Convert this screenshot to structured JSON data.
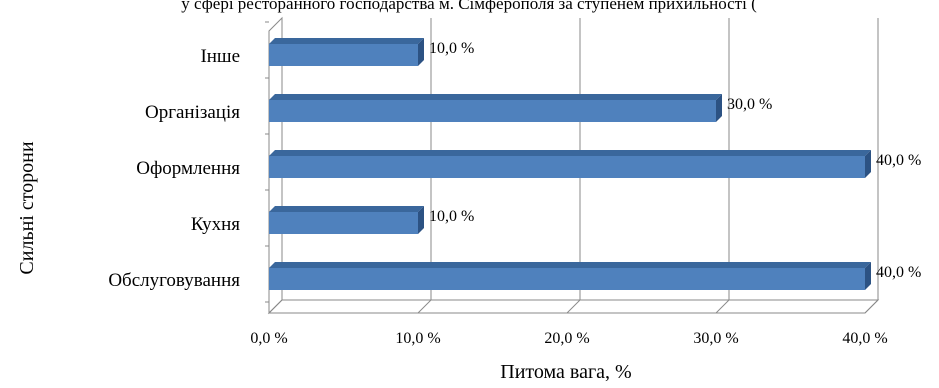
{
  "top_text": "у сфері ресторанного господарства м. Сімферополя за ступенем прихильності (",
  "chart_data": {
    "type": "bar",
    "orientation": "horizontal",
    "style": "3d",
    "categories": [
      "Інше",
      "Організація",
      "Оформлення",
      "Кухня",
      "Обслуговування"
    ],
    "values": [
      10,
      30,
      40,
      10,
      40
    ],
    "data_labels": [
      "10,0 %",
      "30,0 %",
      "40,0 %",
      "10,0 %",
      "40,0 %"
    ],
    "x_ticks": [
      "0,0 %",
      "10,0 %",
      "20,0 %",
      "30,0 %",
      "40,0 %"
    ],
    "xlim": [
      0,
      40
    ],
    "xlabel": "Питома вага, %",
    "ylabel": "Сильні сторони",
    "grid": true,
    "legend": "none",
    "colors": {
      "bar_front": "#4f81bd",
      "bar_top": "#3a679c",
      "bar_side": "#2c5283",
      "grid": "#8a8a8a"
    }
  }
}
